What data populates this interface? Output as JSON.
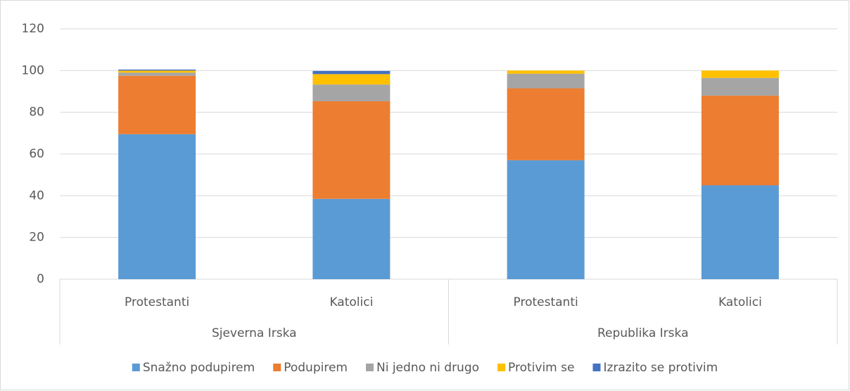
{
  "chart_data": {
    "type": "stacked_bar",
    "categories": [
      "Protestanti",
      "Katolici",
      "Protestanti",
      "Katolici"
    ],
    "groups": [
      "Sjeverna Irska",
      "Republika Irska"
    ],
    "series": [
      {
        "name": "Snažno podupirem",
        "color": "#5b9bd5",
        "values": [
          69.5,
          38.5,
          57,
          45
        ]
      },
      {
        "name": "Podupirem",
        "color": "#ed7d31",
        "values": [
          28,
          46.8,
          34.5,
          43
        ]
      },
      {
        "name": "Ni jedno ni drugo",
        "color": "#a5a5a5",
        "values": [
          1.5,
          8,
          7,
          8.5
        ]
      },
      {
        "name": "Protivim se",
        "color": "#ffc000",
        "values": [
          1,
          5,
          1.5,
          3.5
        ]
      },
      {
        "name": "Izrazito se protivim",
        "color": "#4472c4",
        "values": [
          0.5,
          1.5,
          0,
          0
        ]
      }
    ],
    "ylim": [
      0,
      120
    ],
    "yticks": [
      0,
      20,
      40,
      60,
      80,
      100,
      120
    ],
    "grid": true,
    "legend": "bottom"
  }
}
